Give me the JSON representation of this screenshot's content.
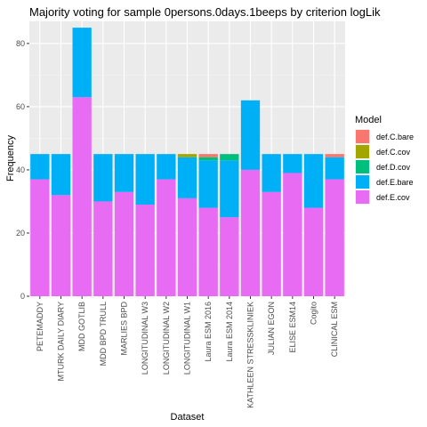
{
  "chart_data": {
    "type": "bar",
    "stacked": true,
    "title": "Majority voting for sample 0persons.0days.1beeps by criterion logLik",
    "xlabel": "Dataset",
    "ylabel": "Frequency",
    "ylim": [
      0,
      87
    ],
    "yticks": [
      0,
      20,
      40,
      60,
      80
    ],
    "grid": true,
    "legend_title": "Model",
    "legend_position": "right",
    "categories": [
      "PETEMADDY",
      "MTURK DAILY DIARY",
      "MDD GOTLIB",
      "MDD BPD TRULL",
      "MARLIES BPD",
      "LONGITUDINAL W3",
      "LONGITUDINAL W2",
      "LONGITUDINAL W1",
      "Laura ESM 2016",
      "Laura ESM 2014",
      "KATHLEEN STRESSKLINIEK",
      "JULIAN EGON",
      "ELISE ESM14",
      "Cogito",
      "CLINICAL ESM"
    ],
    "series": [
      {
        "name": "def.E.cov",
        "color": "#E76BF3",
        "values": [
          37,
          32,
          63,
          30,
          33,
          29,
          37,
          31,
          28,
          25,
          40,
          33,
          39,
          28,
          37
        ]
      },
      {
        "name": "def.E.bare",
        "color": "#00B0F6",
        "values": [
          8,
          13,
          22,
          15,
          12,
          16,
          8,
          13,
          15,
          18,
          22,
          12,
          6,
          17,
          7
        ]
      },
      {
        "name": "def.D.cov",
        "color": "#00BF7D",
        "values": [
          0,
          0,
          0,
          0,
          0,
          0,
          0,
          0,
          1,
          2,
          0,
          0,
          0,
          0,
          0
        ]
      },
      {
        "name": "def.C.cov",
        "color": "#A3A500",
        "values": [
          0,
          0,
          0,
          0,
          0,
          0,
          0,
          1,
          0,
          0,
          0,
          0,
          0,
          0,
          0
        ]
      },
      {
        "name": "def.C.bare",
        "color": "#F8766D",
        "values": [
          0,
          0,
          0,
          0,
          0,
          0,
          0,
          0,
          1,
          0,
          0,
          0,
          0,
          0,
          1
        ]
      }
    ],
    "legend_order": [
      "def.C.bare",
      "def.C.cov",
      "def.D.cov",
      "def.E.bare",
      "def.E.cov"
    ]
  }
}
